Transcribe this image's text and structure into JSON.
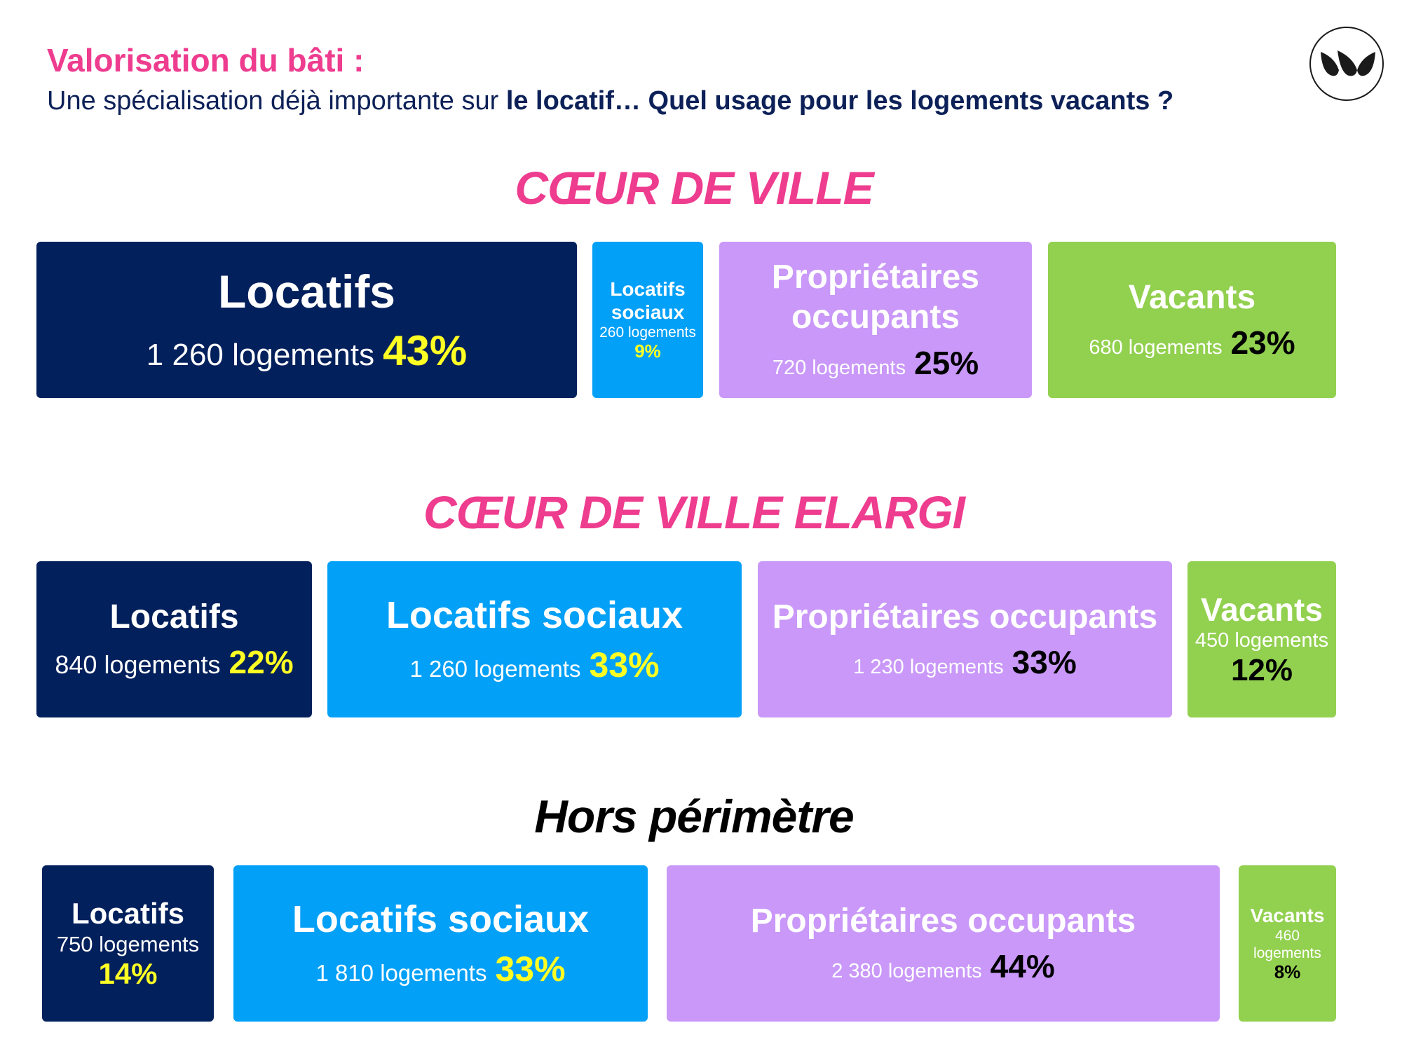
{
  "header": {
    "kicker": "Valorisation du bâti :",
    "subtitle_plain": "Une spécialisation déjà importante sur",
    "subtitle_strong": "le locatif… Quel usage pour les logements vacants ?"
  },
  "logo": {
    "icon": "brand-wave-logo-icon"
  },
  "colors": {
    "pink": "#ee3c8f",
    "navy": "#02205c",
    "blue": "#03a0f7",
    "lilac": "#c998f8",
    "green": "#92d04f",
    "yellow": "#ffff24",
    "black": "#000000"
  },
  "chart_data": [
    {
      "type": "bar",
      "title": "CŒUR DE VILLE",
      "categories": [
        "Locatifs",
        "Locatifs sociaux",
        "Propriétaires occupants",
        "Vacants"
      ],
      "counts": [
        "1 260 logements",
        "260 logements",
        "720 logements",
        "680 logements"
      ],
      "percents": [
        "43%",
        "9%",
        "25%",
        "23%"
      ],
      "values": [
        1260,
        260,
        720,
        680
      ],
      "shares": [
        43,
        9,
        25,
        23
      ]
    },
    {
      "type": "bar",
      "title": "CŒUR DE VILLE ELARGI",
      "categories": [
        "Locatifs",
        "Locatifs sociaux",
        "Propriétaires occupants",
        "Vacants"
      ],
      "counts": [
        "840 logements",
        "1 260 logements",
        "1 230 logements",
        "450 logements"
      ],
      "percents": [
        "22%",
        "33%",
        "33%",
        "12%"
      ],
      "values": [
        840,
        1260,
        1230,
        450
      ],
      "shares": [
        22,
        33,
        33,
        12
      ]
    },
    {
      "type": "bar",
      "title": "Hors périmètre",
      "categories": [
        "Locatifs",
        "Locatifs sociaux",
        "Propriétaires occupants",
        "Vacants"
      ],
      "counts": [
        "750 logements",
        "1 810 logements",
        "2 380 logements",
        "460 logements"
      ],
      "percents": [
        "14%",
        "33%",
        "44%",
        "8%"
      ],
      "values": [
        750,
        1810,
        2380,
        460
      ],
      "shares": [
        14,
        33,
        44,
        8
      ]
    }
  ]
}
